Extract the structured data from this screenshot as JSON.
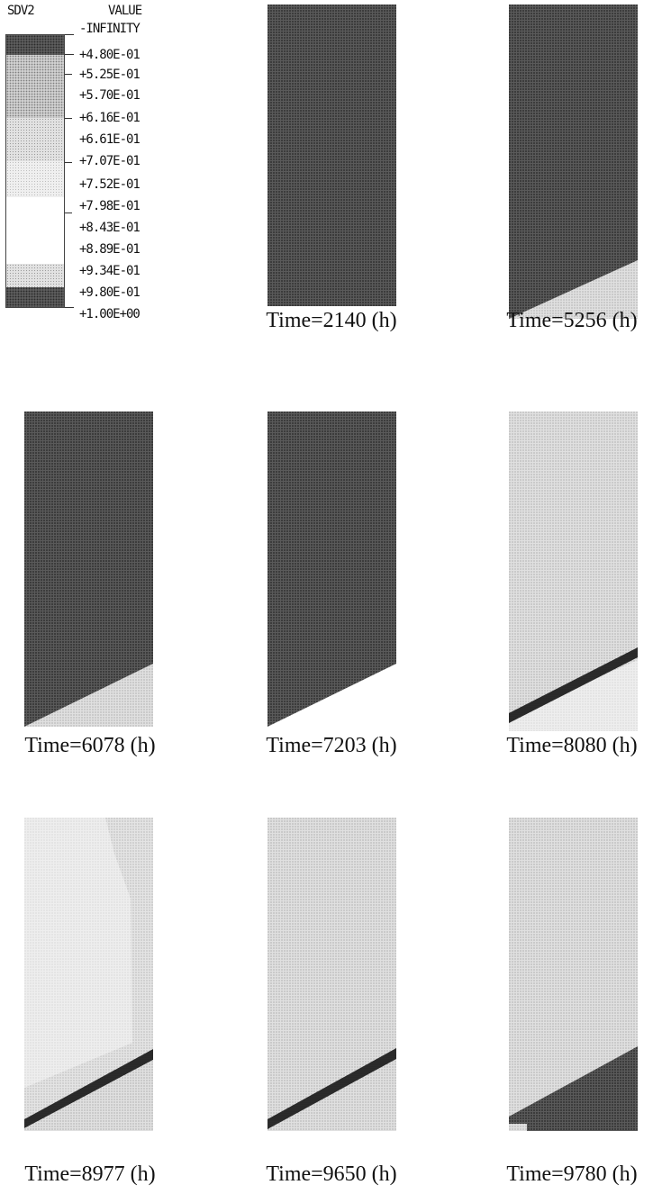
{
  "legend": {
    "variable": "SDV2",
    "value_header": "VALUE",
    "labels": [
      "-INFINITY",
      "+4.80E-01",
      "+5.25E-01",
      "+5.70E-01",
      "+6.16E-01",
      "+6.61E-01",
      "+7.07E-01",
      "+7.52E-01",
      "+7.98E-01",
      "+8.43E-01",
      "+8.89E-01",
      "+9.34E-01",
      "+9.80E-01",
      "+1.00E+00"
    ]
  },
  "panels": [
    {
      "caption": "Time=2140 (h)",
      "state": "all-dark"
    },
    {
      "caption": "Time=5256 (h)",
      "state": "dark-with-light-wedge"
    },
    {
      "caption": "Time=6078 (h)",
      "state": "dark-with-light-wedge"
    },
    {
      "caption": "Time=7203 (h)",
      "state": "dark-with-missing-wedge"
    },
    {
      "caption": "Time=8080 (h)",
      "state": "light-with-dark-band"
    },
    {
      "caption": "Time=8977 (h)",
      "state": "light-with-dark-band"
    },
    {
      "caption": "Time=9650 (h)",
      "state": "light-with-dark-band"
    },
    {
      "caption": "Time=9780 (h)",
      "state": "light-with-dark-wedge"
    }
  ]
}
